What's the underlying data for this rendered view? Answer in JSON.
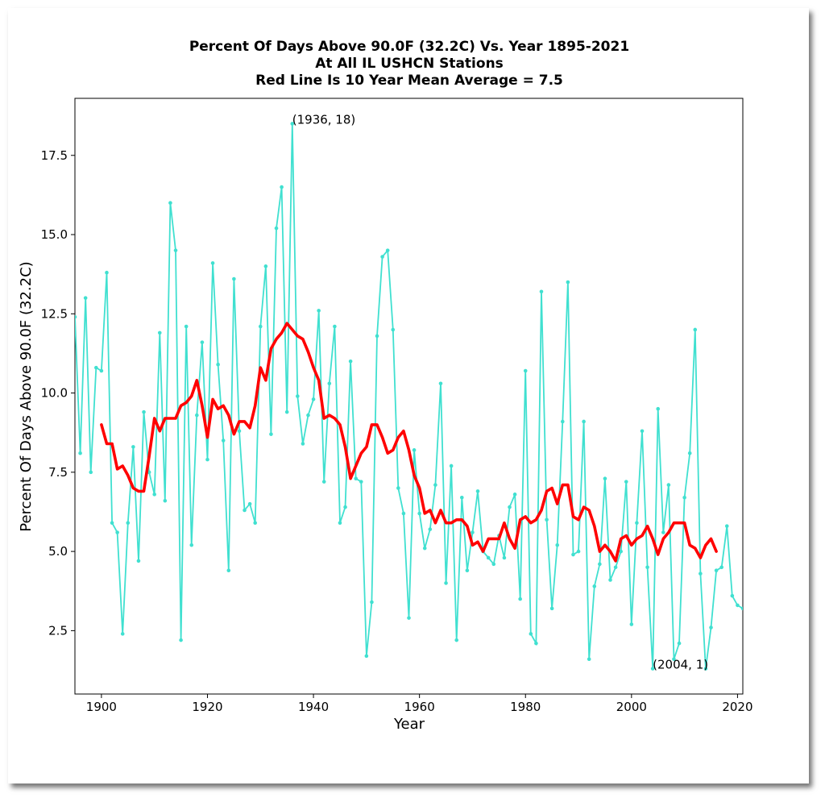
{
  "chart_data": {
    "type": "line",
    "title_lines": [
      "Percent Of Days Above 90.0F (32.2C) Vs. Year 1895-2021",
      "At All IL USHCN Stations",
      "Red Line Is 10 Year Mean  Average = 7.5"
    ],
    "xlabel": "Year",
    "ylabel": "Percent Of Days Above 90.0F (32.2C)",
    "xlim": [
      1895,
      2021
    ],
    "ylim": [
      0.5,
      19.3
    ],
    "x_ticks": [
      1900,
      1920,
      1940,
      1960,
      1980,
      2000,
      2020
    ],
    "y_ticks": [
      2.5,
      5.0,
      7.5,
      10.0,
      12.5,
      15.0,
      17.5
    ],
    "grid": false,
    "colors": {
      "annual": "#40e0d0",
      "mean": "#ff0000"
    },
    "annotations": [
      {
        "text": "(1936, 18)",
        "x": 1936,
        "y": 18.5
      },
      {
        "text": "(2004, 1)",
        "x": 2004,
        "y": 1.3
      }
    ],
    "series": [
      {
        "x": [
          1895,
          1896,
          1897,
          1898,
          1899,
          1900,
          1901,
          1902,
          1903,
          1904,
          1905,
          1906,
          1907,
          1908,
          1909,
          1910,
          1911,
          1912,
          1913,
          1914,
          1915,
          1916,
          1917,
          1918,
          1919,
          1920,
          1921,
          1922,
          1923,
          1924,
          1925,
          1926,
          1927,
          1928,
          1929,
          1930,
          1931,
          1932,
          1933,
          1934,
          1935,
          1936,
          1937,
          1938,
          1939,
          1940,
          1941,
          1942,
          1943,
          1944,
          1945,
          1946,
          1947,
          1948,
          1949,
          1950,
          1951,
          1952,
          1953,
          1954,
          1955,
          1956,
          1957,
          1958,
          1959,
          1960,
          1961,
          1962,
          1963,
          1964,
          1965,
          1966,
          1967,
          1968,
          1969,
          1970,
          1971,
          1972,
          1973,
          1974,
          1975,
          1976,
          1977,
          1978,
          1979,
          1980,
          1981,
          1982,
          1983,
          1984,
          1985,
          1986,
          1987,
          1988,
          1989,
          1990,
          1991,
          1992,
          1993,
          1994,
          1995,
          1996,
          1997,
          1998,
          1999,
          2000,
          2001,
          2002,
          2003,
          2004,
          2005,
          2006,
          2007,
          2008,
          2009,
          2010,
          2011,
          2012,
          2013,
          2014,
          2015,
          2016,
          2017,
          2018,
          2019,
          2020,
          2021
        ],
        "values": [
          12.4,
          8.1,
          13.0,
          7.5,
          10.8,
          10.7,
          13.8,
          5.9,
          5.6,
          2.4,
          5.9,
          8.3,
          4.7,
          9.4,
          7.5,
          6.8,
          11.9,
          6.6,
          16.0,
          14.5,
          2.2,
          12.1,
          5.2,
          9.3,
          11.6,
          7.9,
          14.1,
          10.9,
          8.5,
          4.4,
          13.6,
          8.8,
          6.3,
          6.5,
          5.9,
          12.1,
          14.0,
          8.7,
          15.2,
          16.5,
          9.4,
          18.5,
          9.9,
          8.4,
          9.3,
          9.8,
          12.6,
          7.2,
          10.3,
          12.1,
          5.9,
          6.4,
          11.0,
          7.3,
          7.2,
          1.7,
          3.4,
          11.8,
          14.3,
          14.5,
          12.0,
          7.0,
          6.2,
          2.9,
          8.2,
          6.2,
          5.1,
          5.7,
          7.1,
          10.3,
          4.0,
          7.7,
          2.2,
          6.7,
          4.4,
          5.6,
          6.9,
          5.0,
          4.8,
          4.6,
          5.5,
          4.8,
          6.4,
          6.8,
          3.5,
          10.7,
          2.4,
          2.1,
          13.2,
          6.0,
          3.2,
          5.2,
          9.1,
          13.5,
          4.9,
          5.0,
          9.1,
          1.6,
          3.9,
          4.6,
          7.3,
          4.1,
          4.5,
          5.0,
          7.2,
          2.7,
          5.9,
          8.8,
          4.5,
          1.3,
          9.5,
          5.6,
          7.1,
          1.6,
          2.1,
          6.7,
          8.1,
          12.0,
          4.3,
          1.3,
          2.6,
          4.4,
          4.5,
          5.8,
          3.6,
          3.3,
          3.2
        ]
      },
      {
        "x": [
          1900,
          1901,
          1902,
          1903,
          1904,
          1905,
          1906,
          1907,
          1908,
          1909,
          1910,
          1911,
          1912,
          1913,
          1914,
          1915,
          1916,
          1917,
          1918,
          1919,
          1920,
          1921,
          1922,
          1923,
          1924,
          1925,
          1926,
          1927,
          1928,
          1929,
          1930,
          1931,
          1932,
          1933,
          1934,
          1935,
          1936,
          1937,
          1938,
          1939,
          1940,
          1941,
          1942,
          1943,
          1944,
          1945,
          1946,
          1947,
          1948,
          1949,
          1950,
          1951,
          1952,
          1953,
          1954,
          1955,
          1956,
          1957,
          1958,
          1959,
          1960,
          1961,
          1962,
          1963,
          1964,
          1965,
          1966,
          1967,
          1968,
          1969,
          1970,
          1971,
          1972,
          1973,
          1974,
          1975,
          1976,
          1977,
          1978,
          1979,
          1980,
          1981,
          1982,
          1983,
          1984,
          1985,
          1986,
          1987,
          1988,
          1989,
          1990,
          1991,
          1992,
          1993,
          1994,
          1995,
          1996,
          1997,
          1998,
          1999,
          2000,
          2001,
          2002,
          2003,
          2004,
          2005,
          2006,
          2007,
          2008,
          2009,
          2010,
          2011,
          2012,
          2013,
          2014,
          2015,
          2016
        ],
        "values": [
          9.0,
          8.4,
          8.4,
          7.6,
          7.7,
          7.4,
          7.0,
          6.9,
          6.9,
          8.0,
          9.2,
          8.8,
          9.2,
          9.2,
          9.2,
          9.6,
          9.7,
          9.9,
          10.4,
          9.6,
          8.6,
          9.8,
          9.5,
          9.6,
          9.3,
          8.7,
          9.1,
          9.1,
          8.9,
          9.6,
          10.8,
          10.4,
          11.4,
          11.7,
          11.9,
          12.2,
          12.0,
          11.8,
          11.7,
          11.3,
          10.8,
          10.4,
          9.2,
          9.3,
          9.2,
          9.0,
          8.3,
          7.3,
          7.7,
          8.1,
          8.3,
          9.0,
          9.0,
          8.6,
          8.1,
          8.2,
          8.6,
          8.8,
          8.2,
          7.4,
          7.0,
          6.2,
          6.3,
          5.9,
          6.3,
          5.9,
          5.9,
          6.0,
          6.0,
          5.8,
          5.2,
          5.3,
          5.0,
          5.4,
          5.4,
          5.4,
          5.9,
          5.4,
          5.1,
          6.0,
          6.1,
          5.9,
          6.0,
          6.3,
          6.9,
          7.0,
          6.5,
          7.1,
          7.1,
          6.1,
          6.0,
          6.4,
          6.3,
          5.8,
          5.0,
          5.2,
          5.0,
          4.7,
          5.4,
          5.5,
          5.2,
          5.4,
          5.5,
          5.8,
          5.4,
          4.9,
          5.4,
          5.6,
          5.9,
          5.9,
          5.9,
          5.2,
          5.1,
          4.8,
          5.2,
          5.4,
          5.0
        ]
      }
    ]
  }
}
